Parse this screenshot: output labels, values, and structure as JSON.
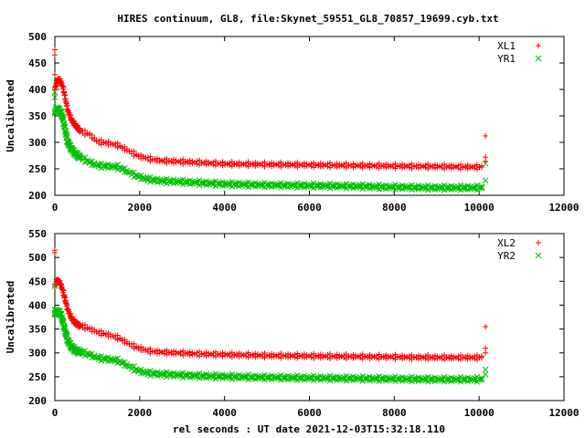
{
  "figure": {
    "title": "HIRES continuum, GL8, file:Skynet_59551_GL8_70857_19699.cyb.txt",
    "xlabel": "rel seconds : UT date 2021-12-03T15:32:18.110"
  },
  "colors": {
    "red": "#ff0000",
    "green": "#00c000",
    "axis": "#000000"
  },
  "chart_data": [
    {
      "type": "scatter",
      "ylabel": "Uncalibrated",
      "xlim": [
        0,
        12000
      ],
      "ylim": [
        200,
        500
      ],
      "xticks": [
        0,
        2000,
        4000,
        6000,
        8000,
        10000,
        12000
      ],
      "yticks": [
        200,
        250,
        300,
        350,
        400,
        450,
        500
      ],
      "legend_position": "top-right",
      "series": [
        {
          "name": "XL1",
          "marker": "plus",
          "color": "#ff0000",
          "x": [
            0,
            50,
            100,
            150,
            200,
            300,
            400,
            500,
            600,
            700,
            800,
            1000,
            1200,
            1500,
            1800,
            2000,
            2200,
            2500,
            3000,
            3500,
            4000,
            5000,
            6000,
            7000,
            8000,
            9000,
            10000,
            10100
          ],
          "y": [
            400,
            415,
            417,
            412,
            400,
            360,
            340,
            330,
            320,
            317,
            315,
            300,
            298,
            293,
            280,
            272,
            268,
            264,
            262,
            260,
            258,
            257,
            256,
            255,
            254,
            253,
            252,
            254
          ],
          "outliers": [
            [
              0,
              475
            ],
            [
              0,
              465
            ],
            [
              0,
              428
            ],
            [
              10150,
              312
            ],
            [
              10150,
              272
            ],
            [
              10150,
              264
            ]
          ]
        },
        {
          "name": "YR1",
          "marker": "cross",
          "color": "#00c000",
          "x": [
            0,
            50,
            100,
            150,
            200,
            300,
            400,
            500,
            600,
            700,
            800,
            1000,
            1200,
            1500,
            1800,
            2000,
            2200,
            2500,
            3000,
            3500,
            4000,
            5000,
            6000,
            7000,
            8000,
            9000,
            10000,
            10100
          ],
          "y": [
            355,
            362,
            360,
            355,
            340,
            300,
            285,
            276,
            270,
            266,
            262,
            255,
            254,
            252,
            240,
            233,
            229,
            226,
            224,
            222,
            220,
            218,
            217,
            216,
            214,
            213,
            213,
            214
          ],
          "outliers": [
            [
              0,
              395
            ],
            [
              0,
              385
            ],
            [
              10150,
              260
            ],
            [
              10150,
              228
            ]
          ]
        }
      ]
    },
    {
      "type": "scatter",
      "ylabel": "Uncalibrated",
      "xlim": [
        0,
        12000
      ],
      "ylim": [
        200,
        550
      ],
      "xticks": [
        0,
        2000,
        4000,
        6000,
        8000,
        10000,
        12000
      ],
      "yticks": [
        200,
        250,
        300,
        350,
        400,
        450,
        500,
        550
      ],
      "legend_position": "top-right",
      "series": [
        {
          "name": "XL2",
          "marker": "plus",
          "color": "#ff0000",
          "x": [
            0,
            50,
            100,
            150,
            200,
            300,
            400,
            500,
            600,
            700,
            800,
            1000,
            1200,
            1500,
            1800,
            2000,
            2200,
            2500,
            3000,
            3500,
            4000,
            5000,
            6000,
            7000,
            8000,
            9000,
            10000,
            10100
          ],
          "y": [
            440,
            450,
            448,
            440,
            425,
            390,
            370,
            360,
            355,
            353,
            350,
            342,
            338,
            330,
            315,
            308,
            303,
            300,
            298,
            296,
            295,
            293,
            292,
            291,
            290,
            289,
            289,
            291
          ],
          "outliers": [
            [
              0,
              515
            ],
            [
              0,
              510
            ],
            [
              10150,
              355
            ],
            [
              10150,
              310
            ],
            [
              10150,
              300
            ]
          ]
        },
        {
          "name": "YR2",
          "marker": "cross",
          "color": "#00c000",
          "x": [
            0,
            50,
            100,
            150,
            200,
            300,
            400,
            500,
            600,
            700,
            800,
            1000,
            1200,
            1500,
            1800,
            2000,
            2200,
            2500,
            3000,
            3500,
            4000,
            5000,
            6000,
            7000,
            8000,
            9000,
            10000,
            10100
          ],
          "y": [
            380,
            385,
            384,
            378,
            360,
            325,
            310,
            303,
            300,
            298,
            296,
            288,
            286,
            282,
            268,
            260,
            256,
            254,
            252,
            250,
            249,
            247,
            246,
            245,
            244,
            243,
            243,
            244
          ],
          "outliers": [
            [
              0,
              440
            ],
            [
              0,
              390
            ],
            [
              10150,
              265
            ],
            [
              10150,
              255
            ]
          ]
        }
      ]
    }
  ]
}
